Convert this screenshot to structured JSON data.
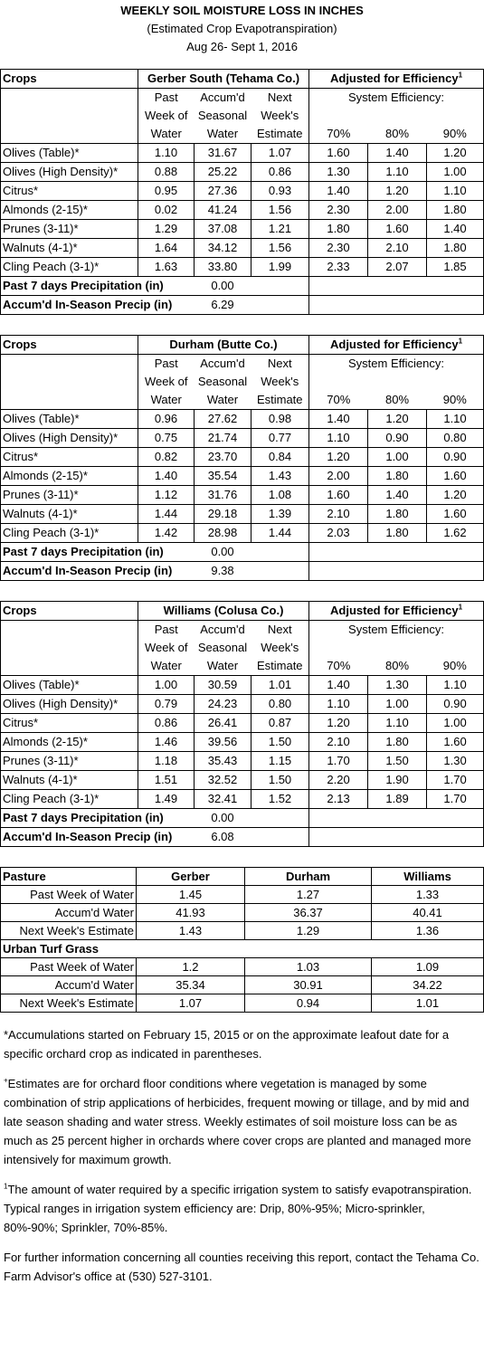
{
  "header": {
    "title": "WEEKLY SOIL MOISTURE LOSS IN INCHES",
    "subtitle": "(Estimated Crop Evapotranspiration)",
    "date": "Aug 26- Sept 1, 2016"
  },
  "sites": [
    {
      "crops_label": "Crops",
      "site": "Gerber South (Tehama Co.)",
      "adjusted": "Adjusted for Efficiency",
      "adjusted_note": "1",
      "system": "System Efficiency:",
      "columns": [
        [
          "Past",
          "Week of",
          "Water"
        ],
        [
          "Accum'd",
          "Seasonal",
          "Water"
        ],
        [
          "Next",
          "Week's",
          "Estimate"
        ]
      ],
      "efficiency": [
        "70%",
        "80%",
        "90%"
      ],
      "rows": [
        [
          "Olives (Table)*",
          "1.10",
          "31.67",
          "1.07",
          "1.60",
          "1.40",
          "1.20"
        ],
        [
          "Olives (High Density)*",
          "0.88",
          "25.22",
          "0.86",
          "1.30",
          "1.10",
          "1.00"
        ],
        [
          "Citrus*",
          "0.95",
          "27.36",
          "0.93",
          "1.40",
          "1.20",
          "1.10"
        ],
        [
          "Almonds (2-15)*",
          "0.02",
          "41.24",
          "1.56",
          "2.30",
          "2.00",
          "1.80"
        ],
        [
          "Prunes (3-11)*",
          "1.29",
          "37.08",
          "1.21",
          "1.80",
          "1.60",
          "1.40"
        ],
        [
          "Walnuts (4-1)*",
          "1.64",
          "34.12",
          "1.56",
          "2.30",
          "2.10",
          "1.80"
        ],
        [
          "Cling Peach (3-1)*",
          "1.63",
          "33.80",
          "1.99",
          "2.33",
          "2.07",
          "1.85"
        ]
      ],
      "precip": [
        [
          "Past 7 days Precipitation (in)",
          "0.00"
        ],
        [
          "Accum'd In-Season Precip (in)",
          "6.29"
        ]
      ]
    },
    {
      "crops_label": "Crops",
      "site": "Durham (Butte Co.)",
      "adjusted": "Adjusted for Efficiency",
      "adjusted_note": "1",
      "system": "System Efficiency:",
      "columns": [
        [
          "Past",
          "Week of",
          "Water"
        ],
        [
          "Accum'd",
          "Seasonal",
          "Water"
        ],
        [
          "Next",
          "Week's",
          "Estimate"
        ]
      ],
      "efficiency": [
        "70%",
        "80%",
        "90%"
      ],
      "rows": [
        [
          "Olives (Table)*",
          "0.96",
          "27.62",
          "0.98",
          "1.40",
          "1.20",
          "1.10"
        ],
        [
          "Olives (High Density)*",
          "0.75",
          "21.74",
          "0.77",
          "1.10",
          "0.90",
          "0.80"
        ],
        [
          "Citrus*",
          "0.82",
          "23.70",
          "0.84",
          "1.20",
          "1.00",
          "0.90"
        ],
        [
          "Almonds (2-15)*",
          "1.40",
          "35.54",
          "1.43",
          "2.00",
          "1.80",
          "1.60"
        ],
        [
          "Prunes (3-11)*",
          "1.12",
          "31.76",
          "1.08",
          "1.60",
          "1.40",
          "1.20"
        ],
        [
          "Walnuts (4-1)*",
          "1.44",
          "29.18",
          "1.39",
          "2.10",
          "1.80",
          "1.60"
        ],
        [
          "Cling Peach (3-1)*",
          "1.42",
          "28.98",
          "1.44",
          "2.03",
          "1.80",
          "1.62"
        ]
      ],
      "precip": [
        [
          "Past 7 days Precipitation (in)",
          "0.00"
        ],
        [
          "Accum'd In-Season Precip (in)",
          "9.38"
        ]
      ]
    },
    {
      "crops_label": "Crops",
      "site": "Williams (Colusa Co.)",
      "adjusted": "Adjusted for Efficiency",
      "adjusted_note": "1",
      "system": "System Efficiency:",
      "columns": [
        [
          "Past",
          "Week of",
          "Water"
        ],
        [
          "Accum'd",
          "Seasonal",
          "Water"
        ],
        [
          "Next",
          "Week's",
          "Estimate"
        ]
      ],
      "efficiency": [
        "70%",
        "80%",
        "90%"
      ],
      "rows": [
        [
          "Olives (Table)*",
          "1.00",
          "30.59",
          "1.01",
          "1.40",
          "1.30",
          "1.10"
        ],
        [
          "Olives (High Density)*",
          "0.79",
          "24.23",
          "0.80",
          "1.10",
          "1.00",
          "0.90"
        ],
        [
          "Citrus*",
          "0.86",
          "26.41",
          "0.87",
          "1.20",
          "1.10",
          "1.00"
        ],
        [
          "Almonds (2-15)*",
          "1.46",
          "39.56",
          "1.50",
          "2.10",
          "1.80",
          "1.60"
        ],
        [
          "Prunes (3-11)*",
          "1.18",
          "35.43",
          "1.15",
          "1.70",
          "1.50",
          "1.30"
        ],
        [
          "Walnuts (4-1)*",
          "1.51",
          "32.52",
          "1.50",
          "2.20",
          "1.90",
          "1.70"
        ],
        [
          "Cling Peach (3-1)*",
          "1.49",
          "32.41",
          "1.52",
          "2.13",
          "1.89",
          "1.70"
        ]
      ],
      "precip": [
        [
          "Past 7 days Precipitation (in)",
          "0.00"
        ],
        [
          "Accum'd In-Season Precip (in)",
          "6.08"
        ]
      ]
    }
  ],
  "pasture": {
    "header": [
      "Pasture",
      "Gerber",
      "Durham",
      "Williams"
    ],
    "rows": [
      [
        "Past Week of Water",
        "1.45",
        "1.27",
        "1.33"
      ],
      [
        "Accum'd Water",
        "41.93",
        "36.37",
        "40.41"
      ],
      [
        "Next Week's Estimate",
        "1.43",
        "1.29",
        "1.36"
      ]
    ],
    "turf_header": "Urban Turf Grass",
    "turf_rows": [
      [
        "Past Week of Water",
        "1.2",
        "1.03",
        "1.09"
      ],
      [
        "Accum'd Water",
        "35.34",
        "30.91",
        "34.22"
      ],
      [
        "Next Week's Estimate",
        "1.07",
        "0.94",
        "1.01"
      ]
    ]
  },
  "footnotes": [
    {
      "text": "*Accumulations started on February 15, 2015 or on the approximate leafout date for a specific orchard crop as indicated in parentheses."
    },
    {
      "marker": "+",
      "text": "Estimates are for orchard floor conditions where vegetation is managed by some combination of strip applications of herbicides, frequent mowing or tillage, and by mid and late season shading and water stress.  Weekly estimates of soil moisture loss can be as much as 25 percent higher in orchards where cover crops are planted and managed more intensively for maximum growth."
    },
    {
      "marker": "1",
      "text": "The amount of water required by a specific irrigation system to satisfy evapotranspiration. Typical ranges in irrigation system efficiency are: Drip, 80%-95%; Micro-sprinkler, 80%-90%; Sprinkler, 70%-85%."
    },
    {
      "text": "For further information concerning all counties receiving this report, contact the Tehama Co. Farm Advisor's office at (530) 527-3101."
    }
  ]
}
